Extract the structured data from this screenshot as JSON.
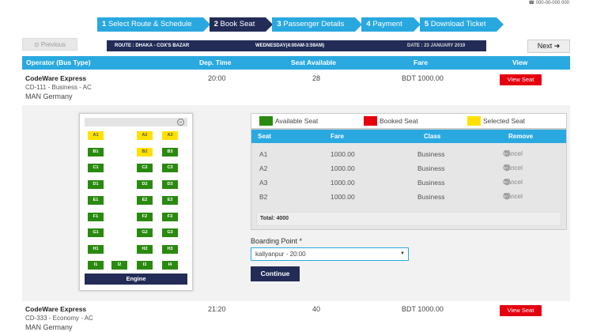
{
  "top_note": "☎ 000-00-000 000",
  "steps": [
    {
      "num": "1",
      "label": "Select Route & Schedule",
      "active": false
    },
    {
      "num": "2",
      "label": "Book Seat",
      "active": true
    },
    {
      "num": "3",
      "label": "Passenger Details",
      "active": false
    },
    {
      "num": "4",
      "label": "Payment",
      "active": false
    },
    {
      "num": "5",
      "label": "Download Ticket",
      "active": false
    }
  ],
  "nav": {
    "previous": "Previous",
    "next": "Next"
  },
  "route": {
    "route": "ROUTE : DHAKA - COX'S BAZAR",
    "day": "WEDNESDAY(4:00AM-3:59AM)",
    "date": "DATE : 23 JANUARY 2019"
  },
  "table_headers": {
    "operator": "Operator (Bus Type)",
    "dep_time": "Dep. Time",
    "seat_available": "Seat Available",
    "fare": "Fare",
    "view": "View"
  },
  "buses": [
    {
      "name": "CodeWare Express",
      "code": "CD-111 - Business - AC",
      "maker": "MAN Germany",
      "dep_time": "20:00",
      "seats": "28",
      "fare": "BDT 1000.00",
      "view": "View Seat"
    },
    {
      "name": "CodeWare Express",
      "code": "CD-333 - Economy - AC",
      "maker": "MAN Germany",
      "dep_time": "21:20",
      "seats": "40",
      "fare": "BDT 1000.00",
      "view": "View Seat"
    }
  ],
  "legend": {
    "available": "Available Seat",
    "booked": "Booked Seat",
    "selected": "Selected Seat",
    "colors": {
      "available": "#2a8a10",
      "booked": "#e4000f",
      "selected": "#ffe100"
    }
  },
  "selection_headers": {
    "seat": "Seat",
    "fare": "Fare",
    "class": "Class",
    "remove": "Remove"
  },
  "selected_seats": [
    {
      "seat": "A1",
      "fare": "1000.00",
      "class": "Business",
      "remove": "Cancel"
    },
    {
      "seat": "A2",
      "fare": "1000.00",
      "class": "Business",
      "remove": "Cancel"
    },
    {
      "seat": "A3",
      "fare": "1000.00",
      "class": "Business",
      "remove": "Cancel"
    },
    {
      "seat": "B2",
      "fare": "1000.00",
      "class": "Business",
      "remove": "Cancel"
    }
  ],
  "total": "Total: 4000",
  "boarding": {
    "label": "Boarding Point *",
    "value": "kallyanpur - 20:00"
  },
  "continue": "Continue",
  "engine": "Engine",
  "seats": [
    {
      "id": "A1",
      "status": "selected"
    },
    {
      "id": "A2",
      "status": "selected"
    },
    {
      "id": "A3",
      "status": "selected"
    },
    {
      "id": "B1",
      "status": "available"
    },
    {
      "id": "B2",
      "status": "selected"
    },
    {
      "id": "B3",
      "status": "available"
    },
    {
      "id": "C1",
      "status": "available"
    },
    {
      "id": "C2",
      "status": "available"
    },
    {
      "id": "C3",
      "status": "available"
    },
    {
      "id": "D1",
      "status": "available"
    },
    {
      "id": "D2",
      "status": "available"
    },
    {
      "id": "D3",
      "status": "available"
    },
    {
      "id": "E1",
      "status": "available"
    },
    {
      "id": "E2",
      "status": "available"
    },
    {
      "id": "E3",
      "status": "available"
    },
    {
      "id": "F1",
      "status": "available"
    },
    {
      "id": "F2",
      "status": "available"
    },
    {
      "id": "F3",
      "status": "available"
    },
    {
      "id": "G1",
      "status": "available"
    },
    {
      "id": "G2",
      "status": "available"
    },
    {
      "id": "G3",
      "status": "available"
    },
    {
      "id": "H1",
      "status": "available"
    },
    {
      "id": "H2",
      "status": "available"
    },
    {
      "id": "H3",
      "status": "available"
    },
    {
      "id": "I1",
      "status": "available"
    },
    {
      "id": "I2",
      "status": "available"
    },
    {
      "id": "I3",
      "status": "available"
    },
    {
      "id": "I4",
      "status": "available"
    }
  ]
}
